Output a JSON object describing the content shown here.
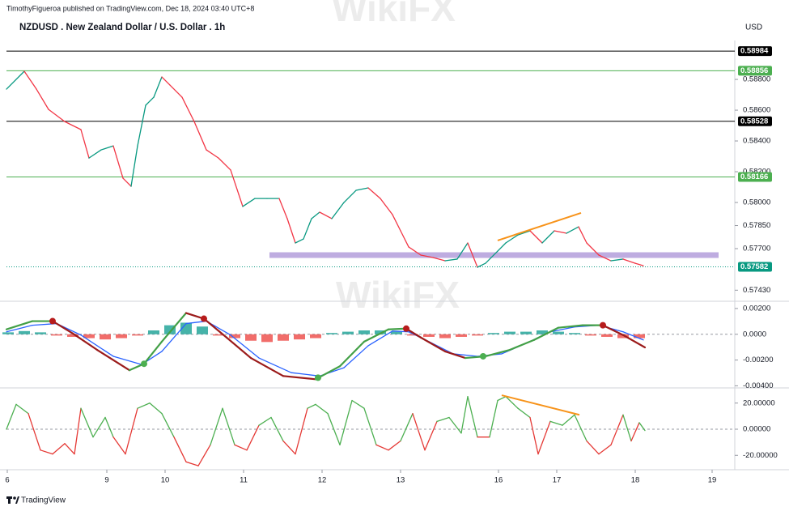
{
  "header": {
    "author_line": "TimothyFigueroa published on TradingView.com, Dec 18, 2024 03:40 UTC+8",
    "title": "NZDUSD . New Zealand Dollar / U.S. Dollar . 1h",
    "currency": "USD"
  },
  "footer": {
    "brand": "TradingView"
  },
  "watermark": "WikiFX",
  "chart_data": [
    {
      "type": "line",
      "xlim": [
        0,
        900
      ],
      "ylim": [
        0.57358,
        0.59053
      ],
      "yticks": [
        {
          "value": 0.588,
          "label": "0.58800"
        },
        {
          "value": 0.586,
          "label": "0.58600"
        },
        {
          "value": 0.584,
          "label": "0.58400"
        },
        {
          "value": 0.582,
          "label": "0.58200"
        },
        {
          "value": 0.58,
          "label": "0.58000"
        },
        {
          "value": 0.5785,
          "label": "0.57850"
        },
        {
          "value": 0.577,
          "label": "0.57700"
        },
        {
          "value": 0.5743,
          "label": "0.57430"
        }
      ],
      "series": [
        {
          "color_up": "#089981",
          "color_down": "#f23645",
          "x": [
            0,
            22,
            37,
            52,
            72,
            92,
            102,
            117,
            132,
            144,
            154,
            162,
            172,
            182,
            192,
            202,
            217,
            232,
            247,
            262,
            277,
            287,
            292,
            307,
            322,
            337,
            347,
            357,
            367,
            377,
            387,
            402,
            417,
            432,
            447,
            462,
            477,
            487,
            497,
            512,
            527,
            542,
            557,
            570,
            582,
            592,
            607,
            617,
            632,
            647,
            662,
            677,
            692,
            707,
            717,
            732,
            747,
            762,
            777,
            787
          ],
          "values": [
            0.58737,
            0.58853,
            0.58737,
            0.58605,
            0.58526,
            0.58474,
            0.58289,
            0.58342,
            0.58368,
            0.58158,
            0.58105,
            0.58368,
            0.58632,
            0.58684,
            0.58816,
            0.58763,
            0.58684,
            0.58526,
            0.58342,
            0.58289,
            0.58211,
            0.58053,
            0.57974,
            0.58026,
            0.58026,
            0.58026,
            0.57895,
            0.57737,
            0.57763,
            0.57895,
            0.57937,
            0.57895,
            0.58,
            0.58079,
            0.58095,
            0.58026,
            0.57921,
            0.57816,
            0.57711,
            0.57658,
            0.57642,
            0.57621,
            0.57632,
            0.57737,
            0.57579,
            0.57605,
            0.57684,
            0.57737,
            0.57789,
            0.57816,
            0.57737,
            0.57816,
            0.578,
            0.57842,
            0.57737,
            0.57658,
            0.57621,
            0.57632,
            0.57605,
            0.57589
          ]
        }
      ],
      "levels": [
        {
          "value": 0.58984,
          "color": "#000000"
        },
        {
          "value": 0.58856,
          "color": "#4caf50"
        },
        {
          "value": 0.58528,
          "color": "#000000"
        },
        {
          "value": 0.58166,
          "color": "#4caf50"
        }
      ],
      "last_price": {
        "value": 0.57582,
        "color": "#089981"
      },
      "zone": {
        "x": [
          325,
          880
        ],
        "value": 0.57658,
        "color": "#b39ddb"
      },
      "trendline": {
        "x": [
          607,
          710
        ],
        "values": [
          0.57753,
          0.57932
        ],
        "color": "#f7931a"
      }
    },
    {
      "type": "line",
      "xlim": [
        0,
        900
      ],
      "ylim": [
        -0.0041,
        0.0025
      ],
      "yticks": [
        {
          "value": 0.002,
          "label": "0.00200"
        },
        {
          "value": 0,
          "label": "0.0000"
        },
        {
          "value": -0.002,
          "label": "-0.00200"
        },
        {
          "value": -0.004,
          "label": "-0.00400"
        }
      ],
      "zero_line": true,
      "series": [
        {
          "type": "bar",
          "color_positive": "#26a69a",
          "color_negative": "#ef5350",
          "x": [
            2,
            22,
            42,
            62,
            82,
            102,
            122,
            142,
            162,
            182,
            202,
            222,
            242,
            262,
            282,
            302,
            322,
            342,
            362,
            382,
            402,
            422,
            442,
            462,
            482,
            502,
            522,
            542,
            562,
            582,
            602,
            622,
            642,
            662,
            682,
            702,
            722,
            742,
            762,
            782
          ],
          "values": [
            0.00015,
            0.00025,
            0.00015,
            -0.0001,
            -0.0002,
            -0.0003,
            -0.0004,
            -0.0003,
            -0.0001,
            0.0003,
            0.0007,
            0.0009,
            0.0006,
            -0.0001,
            -0.0003,
            -0.0005,
            -0.0006,
            -0.0005,
            -0.0004,
            -0.0003,
            0.0001,
            0.0002,
            0.0003,
            0.0003,
            0.0002,
            -0.0001,
            -0.0002,
            -0.0003,
            -0.0002,
            -0.0001,
            0.0001,
            0.0002,
            0.0002,
            0.0003,
            0.0002,
            0.0001,
            -0.0001,
            -0.0002,
            -0.0003,
            -0.0003
          ]
        },
        {
          "type": "line",
          "color": "#2962ff",
          "x": [
            0,
            32,
            62,
            92,
            132,
            167,
            192,
            222,
            247,
            277,
            312,
            352,
            387,
            417,
            447,
            477,
            497,
            522,
            552,
            582,
            612,
            642,
            672,
            702,
            732,
            762,
            787
          ],
          "values": [
            0.00019,
            0.0007,
            0.00083,
            -6e-05,
            -0.00171,
            -0.00235,
            -0.00133,
            0.00083,
            0.00102,
            -6e-05,
            -0.00184,
            -0.00298,
            -0.00324,
            -0.0026,
            -0.00089,
            0.00025,
            0.00019,
            -0.00057,
            -0.00152,
            -0.00171,
            -0.00152,
            -0.0007,
            0.00019,
            0.00057,
            0.0007,
            0.00019,
            -0.00044
          ]
        },
        {
          "type": "line",
          "color_up": "#43a047",
          "color_down": "#9b1b1b",
          "x": [
            0,
            32,
            57,
            82,
            112,
            152,
            170,
            192,
            222,
            244,
            272,
            302,
            342,
            382,
            412,
            442,
            472,
            494,
            512,
            542,
            567,
            592,
            622,
            652,
            682,
            712,
            737,
            762,
            789
          ],
          "values": [
            0.00038,
            0.00102,
            0.00102,
            6e-05,
            -0.00121,
            -0.00279,
            -0.00229,
            -0.00057,
            0.00165,
            0.00121,
            -0.00025,
            -0.00184,
            -0.00324,
            -0.00349,
            -0.00248,
            -0.00057,
            0.00038,
            0.00044,
            -0.00025,
            -0.00133,
            -0.00184,
            -0.00171,
            -0.00121,
            -0.00044,
            0.00051,
            0.0007,
            0.0007,
            -6e-05,
            -0.00102
          ]
        }
      ],
      "markers": [
        {
          "x": 57,
          "value": 0.00102,
          "color": "#b71c1c"
        },
        {
          "x": 244,
          "value": 0.00121,
          "color": "#b71c1c"
        },
        {
          "x": 494,
          "value": 0.00044,
          "color": "#b71c1c"
        },
        {
          "x": 737,
          "value": 0.0007,
          "color": "#b71c1c"
        },
        {
          "x": 170,
          "value": -0.00229,
          "color": "#4caf50"
        },
        {
          "x": 385,
          "value": -0.00337,
          "color": "#4caf50"
        },
        {
          "x": 589,
          "value": -0.00171,
          "color": "#4caf50"
        }
      ]
    },
    {
      "type": "line",
      "xlim": [
        0,
        900
      ],
      "ylim": [
        -31,
        31
      ],
      "yticks": [
        {
          "value": 20,
          "label": "20.00000"
        },
        {
          "value": 0,
          "label": "0.00000"
        },
        {
          "value": -20,
          "label": "-20.00000"
        }
      ],
      "zero_line": true,
      "xticks": [
        {
          "value": 1,
          "label": "6"
        },
        {
          "value": 124,
          "label": "9"
        },
        {
          "value": 196,
          "label": "10"
        },
        {
          "value": 293,
          "label": "11"
        },
        {
          "value": 390,
          "label": "12"
        },
        {
          "value": 487,
          "label": "13"
        },
        {
          "value": 608,
          "label": "16"
        },
        {
          "value": 680,
          "label": "17"
        },
        {
          "value": 777,
          "label": "18"
        },
        {
          "value": 872,
          "label": "19"
        }
      ],
      "series": [
        {
          "color_above": "#4caf50",
          "color_below": "#e53935",
          "x": [
            0,
            12,
            27,
            42,
            57,
            72,
            84,
            92,
            107,
            122,
            132,
            147,
            162,
            177,
            192,
            207,
            222,
            237,
            252,
            267,
            282,
            297,
            312,
            327,
            342,
            357,
            372,
            382,
            397,
            412,
            427,
            442,
            457,
            472,
            487,
            502,
            517,
            532,
            547,
            562,
            570,
            582,
            597,
            607,
            617,
            632,
            647,
            657,
            672,
            687,
            702,
            717,
            732,
            747,
            762,
            772,
            782,
            789
          ],
          "values": [
            0,
            19,
            12,
            -16,
            -19,
            -11,
            -19,
            16,
            -6,
            9,
            -6,
            -19,
            16,
            20,
            12,
            -6,
            -25,
            -28,
            -12,
            16,
            -12,
            -16,
            3,
            9,
            -9,
            -19,
            16,
            19,
            12,
            -12,
            22,
            16,
            -12,
            -16,
            -9,
            12,
            -16,
            6,
            9,
            -3,
            25,
            -6,
            -6,
            22,
            25,
            16,
            9,
            -19,
            6,
            3,
            11,
            -9,
            -19,
            -12,
            11,
            -9,
            5,
            -1
          ]
        }
      ],
      "trendline": {
        "x": [
          612,
          708
        ],
        "values": [
          26,
          11
        ],
        "color": "#f7931a"
      }
    }
  ]
}
